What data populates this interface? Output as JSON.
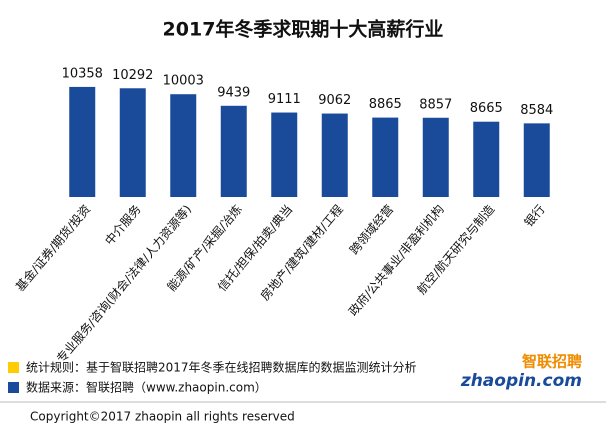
{
  "chart_data": {
    "type": "bar",
    "title": "2017年冬季求职期十大高薪行业",
    "categories": [
      "基金/证券/期货/投资",
      "中介服务",
      "专业服务/咨询(财会/法律/人力资源等)",
      "能源/矿产/采掘/冶炼",
      "信托/担保/拍卖/典当",
      "房地产/建筑/建材/工程",
      "跨领域经营",
      "政府/公共事业/非盈利机构",
      "航空/航天研究与制造",
      "银行"
    ],
    "values": [
      10358,
      10292,
      10003,
      9439,
      9111,
      9062,
      8865,
      8857,
      8665,
      8584
    ],
    "color": "#1a4a9a",
    "ylim": [
      5000,
      10500
    ],
    "notes": [
      {
        "text": "统计规则：基于智联招聘2017年冬季在线招聘数据库的数据监测统计分析",
        "color": "#ffcc00"
      },
      {
        "text": "数据来源：智联招聘（www.zhaopin.com）",
        "color": "#1a4a9a"
      }
    ],
    "copyright": "Copyright©2017  zhaopin  all  rights  reserved",
    "logo": {
      "name": "智联招聘",
      "site": "zhaopin.com"
    }
  }
}
